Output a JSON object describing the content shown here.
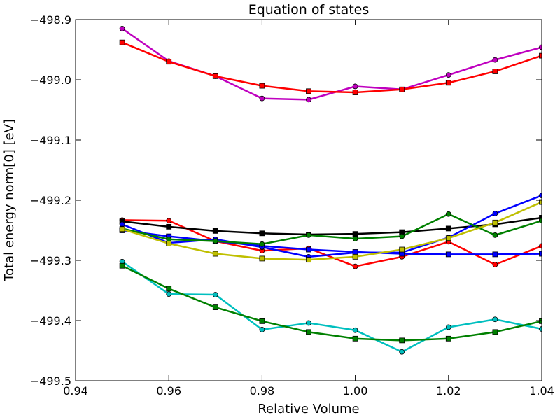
{
  "chart_data": {
    "type": "line",
    "title": "Equation of states",
    "xlabel": "Relative Volume",
    "ylabel": "Total energy norm[0] [eV]",
    "xlim": [
      0.94,
      1.04
    ],
    "ylim": [
      -499.5,
      -498.9
    ],
    "xticks": [
      0.94,
      0.96,
      0.98,
      1.0,
      1.02,
      1.04
    ],
    "xtick_labels": [
      "0.94",
      "0.96",
      "0.98",
      "1.00",
      "1.02",
      "1.04"
    ],
    "yticks": [
      -499.5,
      -499.4,
      -499.3,
      -499.2,
      -499.1,
      -499.0,
      -498.9
    ],
    "ytick_labels": [
      "−499.5",
      "−499.4",
      "−499.3",
      "−499.2",
      "−499.1",
      "−499.0",
      "−498.9"
    ],
    "grid": false,
    "x": [
      0.95,
      0.96,
      0.97,
      0.98,
      0.99,
      1.0,
      1.01,
      1.02,
      1.03,
      1.04
    ],
    "series": [
      {
        "color": "#bf00bf",
        "marker": "circle",
        "values": [
          -498.915,
          -498.969,
          -498.994,
          -499.031,
          -499.033,
          -499.011,
          -499.016,
          -498.992,
          -498.967,
          -498.946
        ]
      },
      {
        "color": "#ff0000",
        "marker": "square",
        "values": [
          -498.938,
          -498.97,
          -498.994,
          -499.01,
          -499.019,
          -499.021,
          -499.016,
          -499.005,
          -498.986,
          -498.96
        ]
      },
      {
        "color": "#ff0000",
        "marker": "circle",
        "values": [
          -499.233,
          -499.234,
          -499.268,
          -499.284,
          -499.28,
          -499.31,
          -499.294,
          -499.269,
          -499.307,
          -499.276
        ]
      },
      {
        "color": "#000000",
        "marker": "square",
        "values": [
          -499.235,
          -499.244,
          -499.251,
          -499.255,
          -499.257,
          -499.256,
          -499.253,
          -499.247,
          -499.24,
          -499.229
        ]
      },
      {
        "color": "#0000ff",
        "marker": "circle",
        "values": [
          -499.24,
          -499.271,
          -499.265,
          -499.278,
          -499.294,
          -499.287,
          -499.287,
          -499.262,
          -499.222,
          -499.192
        ]
      },
      {
        "color": "#0000ff",
        "marker": "square",
        "values": [
          -499.25,
          -499.26,
          -499.268,
          -499.276,
          -499.282,
          -499.286,
          -499.289,
          -499.29,
          -499.29,
          -499.289
        ]
      },
      {
        "color": "#008000",
        "marker": "circle",
        "values": [
          -499.247,
          -499.265,
          -499.268,
          -499.273,
          -499.258,
          -499.264,
          -499.26,
          -499.223,
          -499.258,
          -499.234
        ]
      },
      {
        "color": "#bfbf00",
        "marker": "square",
        "values": [
          -499.248,
          -499.272,
          -499.289,
          -499.297,
          -499.299,
          -499.294,
          -499.282,
          -499.263,
          -499.237,
          -499.203
        ]
      },
      {
        "color": "#00bfbf",
        "marker": "circle",
        "values": [
          -499.302,
          -499.356,
          -499.357,
          -499.415,
          -499.404,
          -499.416,
          -499.452,
          -499.411,
          -499.398,
          -499.414
        ]
      },
      {
        "color": "#008000",
        "marker": "square",
        "values": [
          -499.309,
          -499.347,
          -499.378,
          -499.401,
          -499.419,
          -499.43,
          -499.433,
          -499.43,
          -499.419,
          -499.401
        ]
      }
    ]
  }
}
